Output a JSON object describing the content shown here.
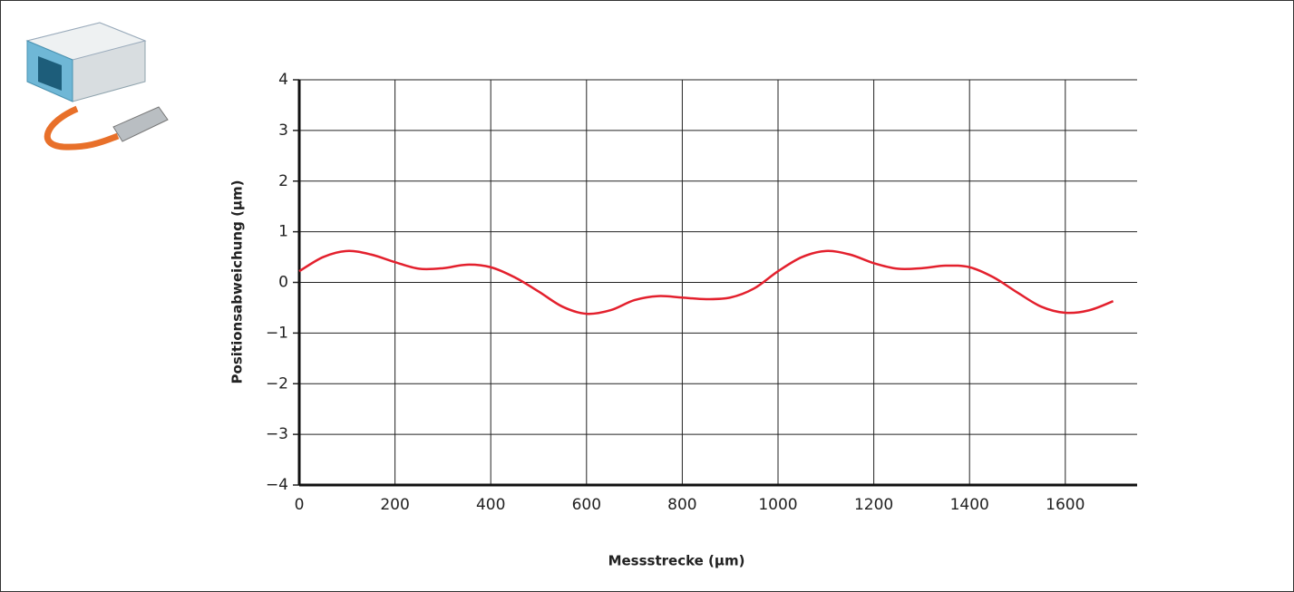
{
  "chart_data": {
    "type": "line",
    "x_label": "Messstrecke (µm)",
    "y_label": "Positionsabweichung (µm)",
    "x": [
      0,
      50,
      100,
      150,
      200,
      250,
      300,
      350,
      400,
      450,
      500,
      550,
      600,
      650,
      700,
      750,
      800,
      850,
      900,
      950,
      1000,
      1050,
      1100,
      1150,
      1200,
      1250,
      1300,
      1350,
      1400,
      1450,
      1500,
      1550,
      1600,
      1650,
      1700
    ],
    "series": [
      {
        "color": "#e3202d",
        "values": [
          0.22,
          0.5,
          0.62,
          0.55,
          0.4,
          0.27,
          0.28,
          0.35,
          0.3,
          0.1,
          -0.18,
          -0.48,
          -0.62,
          -0.55,
          -0.35,
          -0.27,
          -0.3,
          -0.33,
          -0.3,
          -0.12,
          0.22,
          0.5,
          0.62,
          0.55,
          0.38,
          0.27,
          0.28,
          0.33,
          0.3,
          0.1,
          -0.2,
          -0.48,
          -0.6,
          -0.55,
          -0.37
        ]
      }
    ],
    "xlim": [
      0,
      1750
    ],
    "xticks": [
      0,
      200,
      400,
      600,
      800,
      1000,
      1200,
      1400,
      1600
    ],
    "ylim": [
      -4,
      4
    ],
    "yticks": [
      {
        "value": -4,
        "label": "−4"
      },
      {
        "value": -3,
        "label": "−3"
      },
      {
        "value": -2,
        "label": "−2"
      },
      {
        "value": -1,
        "label": "−1"
      },
      0,
      1,
      2,
      3,
      4
    ],
    "grid": true
  }
}
